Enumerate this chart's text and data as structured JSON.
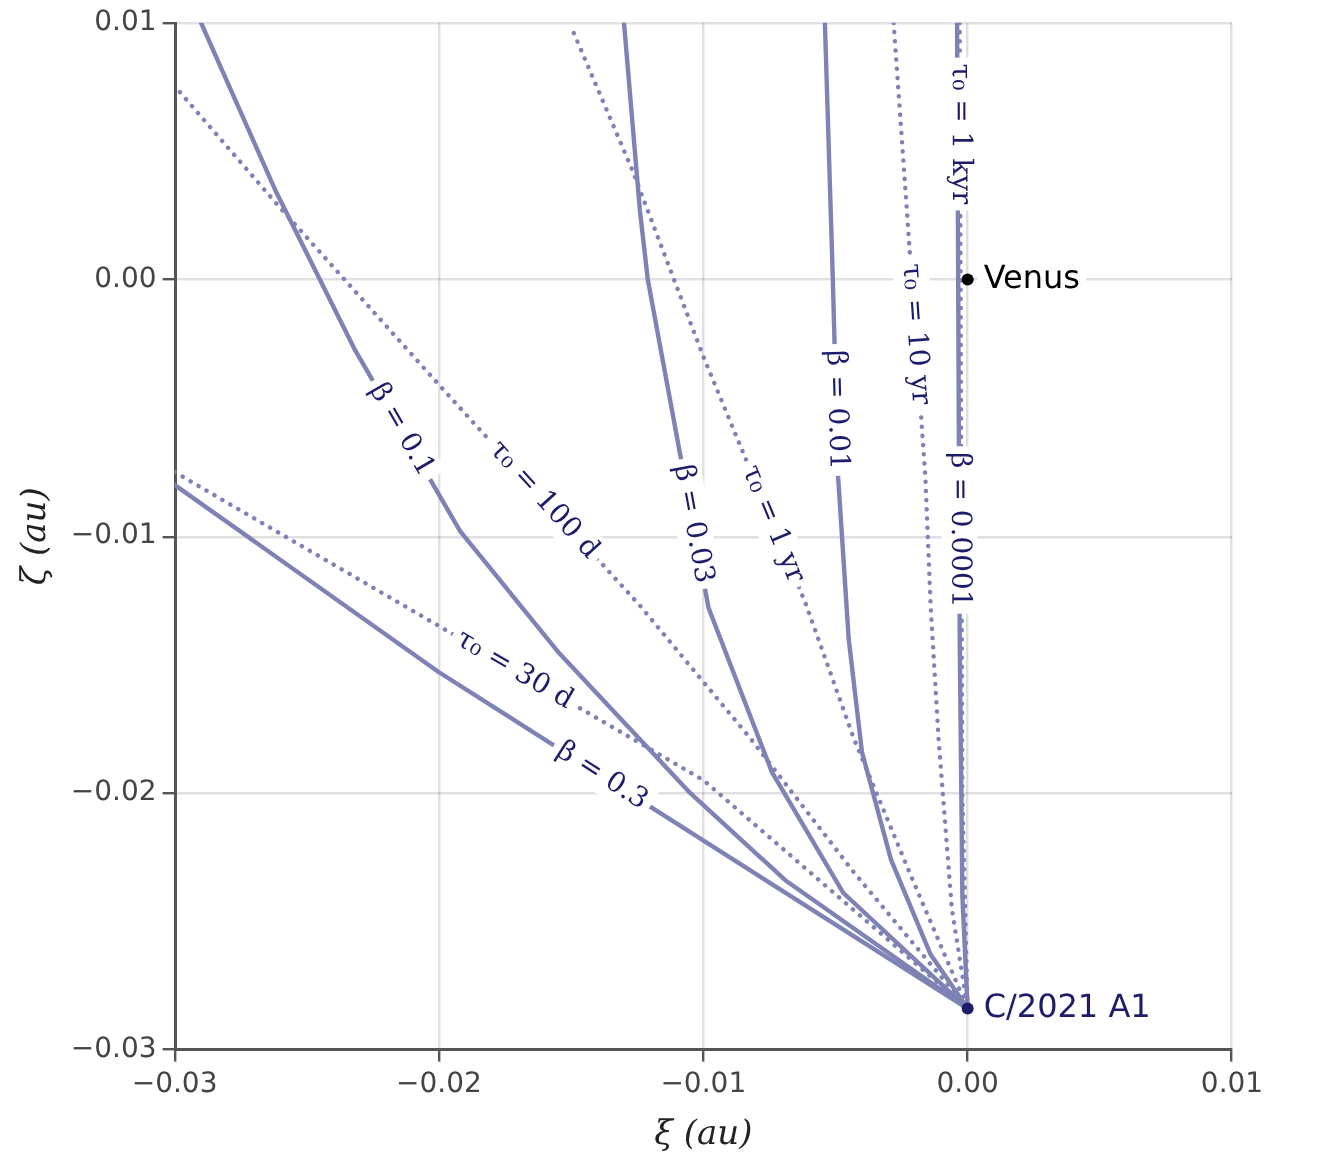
{
  "chart_data": {
    "type": "line",
    "xlabel": "ξ (au)",
    "ylabel": "ζ (au)",
    "xlim": [
      -0.03,
      0.01
    ],
    "ylim": [
      -0.03,
      0.01
    ],
    "xticks": [
      {
        "value": -0.03,
        "label": "−0.03"
      },
      {
        "value": -0.02,
        "label": "−0.02"
      },
      {
        "value": -0.01,
        "label": "−0.01"
      },
      {
        "value": 0,
        "label": "0.00"
      },
      {
        "value": 0.01,
        "label": "0.01"
      }
    ],
    "yticks": [
      {
        "value": -0.03,
        "label": "−0.03"
      },
      {
        "value": -0.02,
        "label": "−0.02"
      },
      {
        "value": -0.01,
        "label": "−0.01"
      },
      {
        "value": 0,
        "label": "0.00"
      },
      {
        "value": 0.01,
        "label": "0.01"
      }
    ],
    "grid": true,
    "legend": false,
    "marker": "none",
    "series": [
      {
        "name": "β = 0.3",
        "color": "#7f82b4",
        "line_style": "solid",
        "x": [
          -0.03,
          -0.02,
          -0.011,
          0
        ],
        "values": [
          -0.008,
          -0.0153,
          -0.0212,
          -0.0284
        ]
      },
      {
        "name": "β = 0.1",
        "color": "#7f82b4",
        "line_style": "solid",
        "x": [
          -0.029,
          -0.0262,
          -0.0232,
          -0.0192,
          -0.0155,
          -0.0105,
          -0.0069,
          0
        ],
        "values": [
          0.01,
          0.0035,
          -0.0027,
          -0.0098,
          -0.0145,
          -0.02,
          -0.0234,
          -0.0284
        ]
      },
      {
        "name": "β = 0.03",
        "color": "#7f82b4",
        "line_style": "solid",
        "x": [
          -0.013,
          -0.0124,
          -0.0121,
          -0.0098,
          -0.0074,
          -0.0047,
          0
        ],
        "values": [
          0.01,
          0.0027,
          0,
          -0.0128,
          -0.0192,
          -0.0239,
          -0.0284
        ]
      },
      {
        "name": "β = 0.01",
        "color": "#7f82b4",
        "line_style": "solid",
        "x": [
          -0.0054,
          -0.0051,
          -0.0049,
          -0.0045,
          -0.004,
          -0.0029,
          -0.0014,
          0
        ],
        "values": [
          0.01,
          0,
          -0.0077,
          -0.014,
          -0.0184,
          -0.0226,
          -0.0263,
          -0.0284
        ]
      },
      {
        "name": "β = 0.0001",
        "color": "#7f82b4",
        "line_style": "solid",
        "x": [
          -0.0004,
          -0.0003,
          -0.0002,
          0
        ],
        "values": [
          0.01,
          -0.014,
          -0.024,
          -0.0284
        ]
      },
      {
        "name": "τ₀ = 30 d",
        "color": "#7f82b4",
        "line_style": "dotted",
        "x": [
          -0.03,
          -0.02,
          -0.01,
          0
        ],
        "values": [
          -0.0075,
          -0.0135,
          -0.0195,
          -0.0284
        ]
      },
      {
        "name": "τ₀ = 100 d",
        "color": "#7f82b4",
        "line_style": "dotted",
        "x": [
          -0.0298,
          -0.0261,
          -0.02,
          -0.0124,
          -0.0082,
          -0.0043,
          0
        ],
        "values": [
          0.0073,
          0.0029,
          -0.0041,
          -0.0127,
          -0.0179,
          -0.0231,
          -0.0284
        ]
      },
      {
        "name": "τ₀ = 1 yr",
        "color": "#7f82b4",
        "line_style": "dotted",
        "x": [
          -0.0149,
          -0.0127,
          -0.01,
          -0.0061,
          -0.0043,
          -0.0022,
          0
        ],
        "values": [
          0.0096,
          0.0043,
          -0.003,
          -0.0127,
          -0.0179,
          -0.0231,
          -0.0284
        ]
      },
      {
        "name": "τ₀ = 10 yr",
        "color": "#7f82b4",
        "line_style": "dotted",
        "x": [
          -0.0028,
          -0.0023,
          -0.0016,
          -0.0014,
          -0.0011,
          -0.0006,
          0
        ],
        "values": [
          0.01,
          0.0027,
          -0.0077,
          -0.0127,
          -0.0179,
          -0.0245,
          -0.0284
        ]
      },
      {
        "name": "τ₀ = 1 kyr",
        "color": "#7f82b4",
        "line_style": "dotted",
        "x": [
          -0.0003,
          -0.0002,
          0
        ],
        "values": [
          0.01,
          -0.02,
          -0.0284
        ]
      }
    ],
    "annotations": [
      {
        "text": "Venus",
        "x": 0,
        "y": 0
      },
      {
        "text": "C/2021 A1",
        "x": 0,
        "y": -0.0284
      }
    ]
  }
}
